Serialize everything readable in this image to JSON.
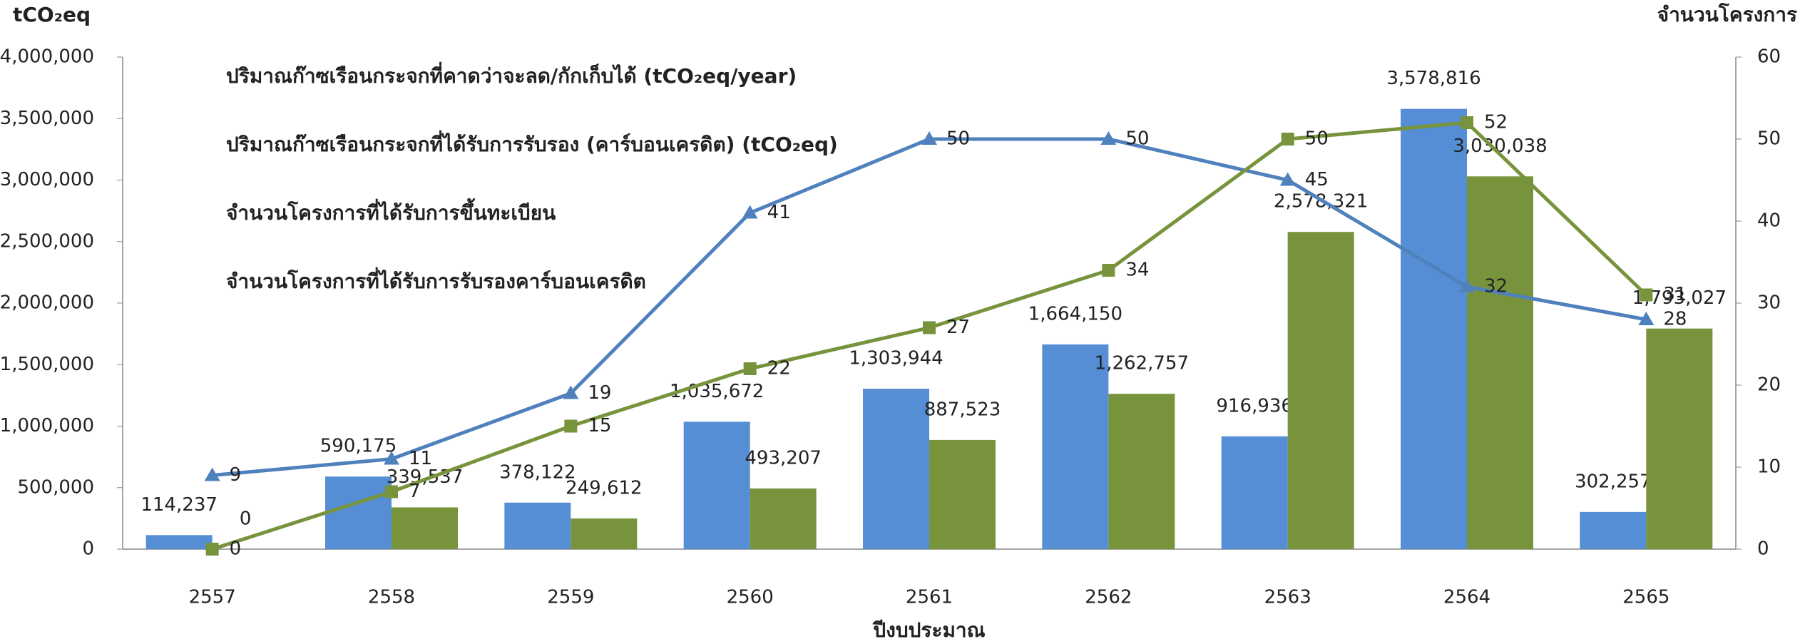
{
  "chart_data": {
    "type": "bar",
    "y_label": "tCO₂eq",
    "y2_label": "จำนวนโครงการ",
    "x_label": "ปีงบประมาณ",
    "categories": [
      "2557",
      "2558",
      "2559",
      "2560",
      "2561",
      "2562",
      "2563",
      "2564",
      "2565"
    ],
    "series": [
      {
        "name": "ปริมาณก๊าซเรือนกระจกที่คาดว่าจะลด/กักเก็บได้ (tCO₂eq/year)",
        "type": "bar",
        "color": "#558ed5",
        "values": [
          114237,
          590175,
          378122,
          1035672,
          1303944,
          1664150,
          916936,
          3578816,
          302257
        ],
        "value_labels": [
          "114,237",
          "590,175",
          "378,122",
          "1,035,672",
          "1,303,944",
          "1,664,150",
          "916,936",
          "3,578,816",
          "302,257"
        ]
      },
      {
        "name": "ปริมาณก๊าซเรือนกระจกที่ได้รับการรับรอง (คาร์บอนเครดิต) (tCO₂eq)",
        "type": "bar",
        "color": "#77933c",
        "values": [
          0,
          339537,
          249612,
          493207,
          887523,
          1262757,
          2578321,
          3030038,
          1793027
        ],
        "value_labels": [
          "0",
          "339,537",
          "249,612",
          "493,207",
          "887,523",
          "1,262,757",
          "2,578,321",
          "3,030,038",
          "1,793,027"
        ]
      },
      {
        "name": "จำนวนโครงการที่ได้รับการขึ้นทะเบียน",
        "type": "line",
        "axis": "y2",
        "color": "#4f81bd",
        "marker": "triangle",
        "values": [
          9,
          11,
          19,
          41,
          50,
          50,
          45,
          32,
          28
        ]
      },
      {
        "name": "จำนวนโครงการที่ได้รับการรับรองคาร์บอนเครดิต",
        "type": "line",
        "axis": "y2",
        "color": "#77933c",
        "marker": "square",
        "values": [
          0,
          7,
          15,
          22,
          27,
          34,
          50,
          52,
          31
        ]
      }
    ],
    "ylim": [
      0,
      4000000
    ],
    "yticks": [
      0,
      {
        "value": 500000,
        "label": "500,000"
      },
      {
        "value": 1000000,
        "label": "1,000,000"
      },
      {
        "value": 1500000,
        "label": "1,500,000"
      },
      {
        "value": 2000000,
        "label": "2,000,000"
      },
      {
        "value": 2500000,
        "label": "2,500,000"
      },
      {
        "value": 3000000,
        "label": "3,000,000"
      },
      {
        "value": 3500000,
        "label": "3,500,000"
      },
      {
        "value": 4000000,
        "label": "4,000,000"
      }
    ],
    "y2lim": [
      0,
      60
    ],
    "y2ticks": [
      0,
      10,
      20,
      30,
      40,
      50,
      60
    ],
    "grid": false
  }
}
